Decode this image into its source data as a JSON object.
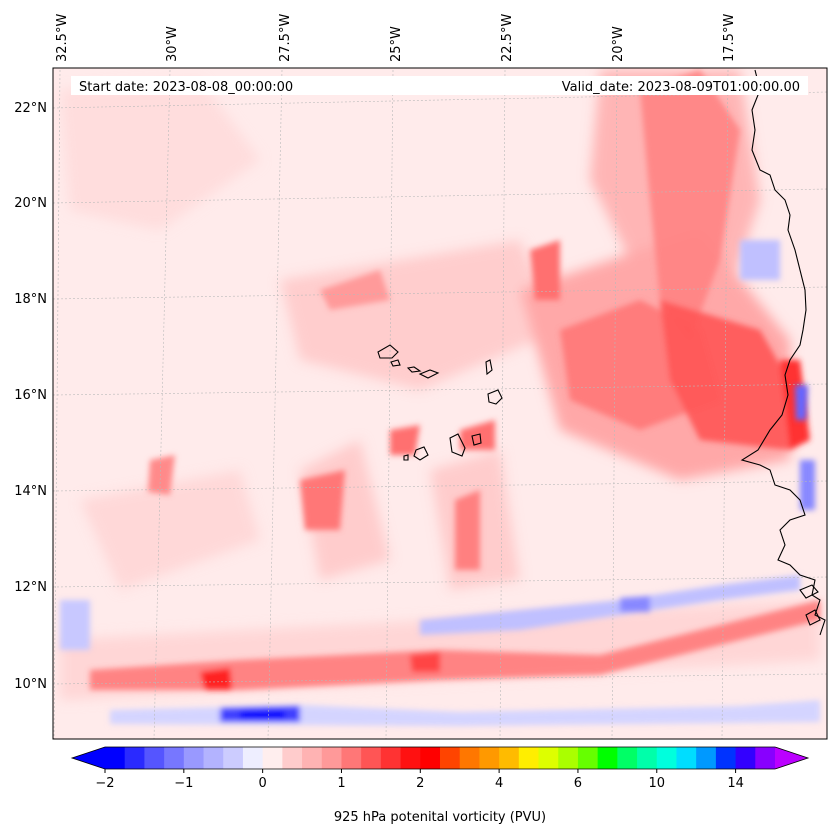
{
  "header": {
    "start_date": "Start date: 2023-08-08_00:00:00",
    "valid_date": "Valid_date: 2023-08-09T01:00:00.00"
  },
  "lon_labels": [
    "32.5°W",
    "30°W",
    "27.5°W",
    "25°W",
    "22.5°W",
    "20°W",
    "17.5°W"
  ],
  "lat_labels": [
    "22°N",
    "20°N",
    "18°N",
    "16°N",
    "14°N",
    "12°N",
    "10°N"
  ],
  "colorbar": {
    "label": "925 hPa potenital vorticity (PVU)",
    "tick_labels": [
      "−2",
      "−1",
      "0",
      "1",
      "2",
      "4",
      "6",
      "10",
      "14"
    ],
    "tick_levels": [
      -2,
      -1,
      0,
      1,
      2,
      4,
      6,
      10,
      14
    ],
    "levels": [
      -2,
      -1.75,
      -1.5,
      -1.25,
      -1,
      -0.75,
      -0.5,
      -0.25,
      0,
      0.25,
      0.5,
      0.75,
      1,
      1.25,
      1.5,
      1.75,
      2,
      2.5,
      3,
      3.5,
      4,
      4.5,
      5,
      5.5,
      6,
      7,
      8,
      9,
      10,
      11,
      12,
      13,
      14
    ],
    "colors": [
      "#0000ff",
      "#2a2aff",
      "#5555ff",
      "#7777ff",
      "#9999ff",
      "#b3b3ff",
      "#ccccff",
      "#eeeeff",
      "#ffeeee",
      "#ffcccc",
      "#ffb3b3",
      "#ff9999",
      "#ff7777",
      "#ff5555",
      "#ff3333",
      "#ff1111",
      "#ff0000",
      "#ff4400",
      "#ff7700",
      "#ff9900",
      "#ffbb00",
      "#ffee00",
      "#ddff00",
      "#aaff00",
      "#66ff00",
      "#00ff00",
      "#00ff66",
      "#00ffaa",
      "#00ffdd",
      "#00ddff",
      "#0099ff",
      "#0033ff",
      "#3300ff",
      "#8800ff"
    ],
    "extend_min_color": "#0000ff",
    "extend_max_color": "#bb00ff"
  },
  "colors": {
    "background_field": "#ffebeb",
    "coast": "#000000"
  }
}
